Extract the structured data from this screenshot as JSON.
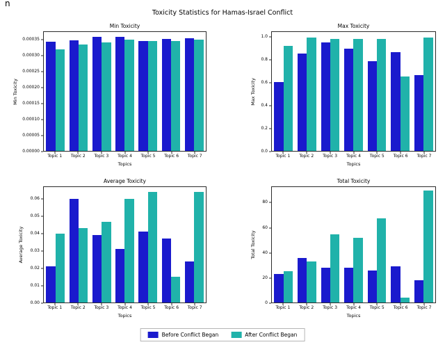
{
  "page": {
    "corner_fragment": "n",
    "suptitle": "Toxicity Statistics for Hamas-Israel Conflict"
  },
  "legend": {
    "entries": [
      {
        "label": "Before Conflict Began",
        "color": "#1a1acd"
      },
      {
        "label": "After Conflict Began",
        "color": "#20b2aa"
      }
    ],
    "position": "lower center"
  },
  "chart_data": [
    {
      "type": "bar",
      "title": "Min Toxicity",
      "xlabel": "Topics",
      "ylabel": "Min Toxicity",
      "categories": [
        "Topic 1",
        "Topic 2",
        "Topic 3",
        "Topic 4",
        "Topic 5",
        "Topic 6",
        "Topic 7"
      ],
      "series": [
        {
          "name": "Before Conflict Began",
          "values": [
            0.000345,
            0.000348,
            0.00036,
            0.00036,
            0.000347,
            0.000353,
            0.000355
          ]
        },
        {
          "name": "After Conflict Began",
          "values": [
            0.00032,
            0.000335,
            0.000342,
            0.00035,
            0.000347,
            0.000346,
            0.00035
          ]
        }
      ],
      "ylim": [
        0,
        0.000375
      ],
      "ytick_values": [
        0,
        5e-05,
        0.0001,
        0.00015,
        0.0002,
        0.00025,
        0.0003,
        0.00035
      ],
      "ytick_labels": [
        "0.00000",
        "0.00005",
        "0.00010",
        "0.00015",
        "0.00020",
        "0.00025",
        "0.00030",
        "0.00035"
      ],
      "grid": false
    },
    {
      "type": "bar",
      "title": "Max Toxicity",
      "xlabel": "Topics",
      "ylabel": "Max Toxicity",
      "categories": [
        "Topic 1",
        "Topic 2",
        "Topic 3",
        "Topic 4",
        "Topic 5",
        "Topic 6",
        "Topic 7"
      ],
      "series": [
        {
          "name": "Before Conflict Began",
          "values": [
            0.61,
            0.86,
            0.96,
            0.9,
            0.79,
            0.87,
            0.67
          ]
        },
        {
          "name": "After Conflict Began",
          "values": [
            0.93,
            1.0,
            0.99,
            0.99,
            0.99,
            0.66,
            1.0
          ]
        }
      ],
      "ylim": [
        0,
        1.05
      ],
      "ytick_values": [
        0,
        0.2,
        0.4,
        0.6,
        0.8,
        1.0
      ],
      "ytick_labels": [
        "0.0",
        "0.2",
        "0.4",
        "0.6",
        "0.8",
        "1.0"
      ],
      "grid": false
    },
    {
      "type": "bar",
      "title": "Average Toxicity",
      "xlabel": "Topics",
      "ylabel": "Average Toxicity",
      "categories": [
        "Topic 1",
        "Topic 2",
        "Topic 3",
        "Topic 4",
        "Topic 5",
        "Topic 6",
        "Topic 7"
      ],
      "series": [
        {
          "name": "Before Conflict Began",
          "values": [
            0.021,
            0.06,
            0.039,
            0.031,
            0.041,
            0.037,
            0.024
          ]
        },
        {
          "name": "After Conflict Began",
          "values": [
            0.04,
            0.043,
            0.047,
            0.06,
            0.064,
            0.015,
            0.064
          ]
        }
      ],
      "ylim": [
        0,
        0.067
      ],
      "ytick_values": [
        0,
        0.01,
        0.02,
        0.03,
        0.04,
        0.05,
        0.06
      ],
      "ytick_labels": [
        "0.00",
        "0.01",
        "0.02",
        "0.03",
        "0.04",
        "0.05",
        "0.06"
      ],
      "grid": false
    },
    {
      "type": "bar",
      "title": "Total Toxicity",
      "xlabel": "Topics",
      "ylabel": "Total Toxicity",
      "categories": [
        "Topic 1",
        "Topic 2",
        "Topic 3",
        "Topic 4",
        "Topic 5",
        "Topic 6",
        "Topic 7"
      ],
      "series": [
        {
          "name": "Before Conflict Began",
          "values": [
            23,
            36,
            28,
            28,
            26,
            29,
            18
          ]
        },
        {
          "name": "After Conflict Began",
          "values": [
            25,
            33,
            55,
            52,
            68,
            4,
            90
          ]
        }
      ],
      "ylim": [
        0,
        93
      ],
      "ytick_values": [
        0,
        20,
        40,
        60,
        80
      ],
      "ytick_labels": [
        "0",
        "20",
        "40",
        "60",
        "80"
      ],
      "grid": false
    }
  ]
}
